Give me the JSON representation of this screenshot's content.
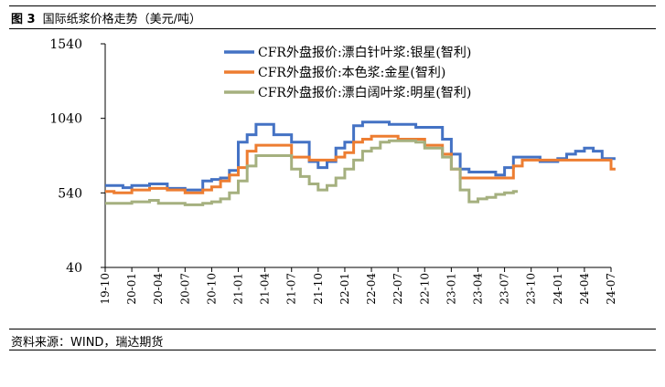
{
  "figure": {
    "number": "图 3",
    "title": "国际纸浆价格走势（美元/吨）"
  },
  "source": "资料来源：WIND，瑞达期货",
  "colors": {
    "silver_star": "#4472C4",
    "gold_star": "#ED7D31",
    "bright_star": "#A5B07F"
  },
  "chart_data": {
    "type": "line",
    "title": "",
    "xlabel": "",
    "ylabel": "",
    "ylim": [
      40,
      1540
    ],
    "yticks": [
      "1540",
      "1040",
      "540",
      "40"
    ],
    "grid": false,
    "legend_position": "top-right",
    "x_tick_labels": [
      "19-10",
      "20-01",
      "20-04",
      "20-07",
      "20-10",
      "21-01",
      "21-04",
      "21-07",
      "21-10",
      "22-01",
      "22-04",
      "22-07",
      "22-10",
      "23-01",
      "23-04",
      "23-07",
      "23-10",
      "24-01",
      "24-04",
      "24-07"
    ],
    "series": [
      {
        "name": "CFR外盘报价:漂白针叶浆:银星(智利)",
        "color_key": "silver_star",
        "points": [
          [
            "2019-10",
            590
          ],
          [
            "2019-11",
            590
          ],
          [
            "2019-12",
            575
          ],
          [
            "2020-01",
            590
          ],
          [
            "2020-02",
            590
          ],
          [
            "2020-03",
            600
          ],
          [
            "2020-04",
            600
          ],
          [
            "2020-05",
            570
          ],
          [
            "2020-06",
            570
          ],
          [
            "2020-07",
            560
          ],
          [
            "2020-08",
            560
          ],
          [
            "2020-09",
            620
          ],
          [
            "2020-10",
            630
          ],
          [
            "2020-11",
            640
          ],
          [
            "2020-12",
            690
          ],
          [
            "2021-01",
            880
          ],
          [
            "2021-02",
            930
          ],
          [
            "2021-03",
            1000
          ],
          [
            "2021-04",
            1000
          ],
          [
            "2021-05",
            930
          ],
          [
            "2021-06",
            930
          ],
          [
            "2021-07",
            880
          ],
          [
            "2021-08",
            880
          ],
          [
            "2021-09",
            750
          ],
          [
            "2021-10",
            710
          ],
          [
            "2021-11",
            750
          ],
          [
            "2021-12",
            840
          ],
          [
            "2022-01",
            880
          ],
          [
            "2022-02",
            990
          ],
          [
            "2022-03",
            1015
          ],
          [
            "2022-04",
            1015
          ],
          [
            "2022-05",
            1015
          ],
          [
            "2022-06",
            1000
          ],
          [
            "2022-07",
            1000
          ],
          [
            "2022-08",
            1000
          ],
          [
            "2022-09",
            980
          ],
          [
            "2022-10",
            980
          ],
          [
            "2022-11",
            980
          ],
          [
            "2022-12",
            900
          ],
          [
            "2023-01",
            800
          ],
          [
            "2023-02",
            700
          ],
          [
            "2023-03",
            680
          ],
          [
            "2023-04",
            680
          ],
          [
            "2023-05",
            680
          ],
          [
            "2023-06",
            660
          ],
          [
            "2023-07",
            710
          ],
          [
            "2023-08",
            780
          ],
          [
            "2023-09",
            780
          ],
          [
            "2023-10",
            780
          ],
          [
            "2023-11",
            750
          ],
          [
            "2023-12",
            750
          ],
          [
            "2024-01",
            770
          ],
          [
            "2024-02",
            800
          ],
          [
            "2024-03",
            820
          ],
          [
            "2024-04",
            840
          ],
          [
            "2024-05",
            820
          ],
          [
            "2024-06",
            770
          ],
          [
            "2024-07",
            770
          ]
        ]
      },
      {
        "name": "CFR外盘报价:本色浆:金星(智利)",
        "color_key": "gold_star",
        "points": [
          [
            "2019-10",
            550
          ],
          [
            "2019-11",
            540
          ],
          [
            "2019-12",
            540
          ],
          [
            "2020-01",
            560
          ],
          [
            "2020-02",
            560
          ],
          [
            "2020-03",
            570
          ],
          [
            "2020-04",
            570
          ],
          [
            "2020-05",
            560
          ],
          [
            "2020-06",
            560
          ],
          [
            "2020-07",
            540
          ],
          [
            "2020-08",
            540
          ],
          [
            "2020-09",
            560
          ],
          [
            "2020-10",
            580
          ],
          [
            "2020-11",
            620
          ],
          [
            "2020-12",
            660
          ],
          [
            "2021-01",
            710
          ],
          [
            "2021-02",
            820
          ],
          [
            "2021-03",
            860
          ],
          [
            "2021-04",
            860
          ],
          [
            "2021-05",
            860
          ],
          [
            "2021-06",
            860
          ],
          [
            "2021-07",
            780
          ],
          [
            "2021-08",
            780
          ],
          [
            "2021-09",
            760
          ],
          [
            "2021-10",
            760
          ],
          [
            "2021-11",
            760
          ],
          [
            "2021-12",
            780
          ],
          [
            "2022-01",
            810
          ],
          [
            "2022-02",
            880
          ],
          [
            "2022-03",
            900
          ],
          [
            "2022-04",
            920
          ],
          [
            "2022-05",
            920
          ],
          [
            "2022-06",
            920
          ],
          [
            "2022-07",
            900
          ],
          [
            "2022-08",
            900
          ],
          [
            "2022-09",
            900
          ],
          [
            "2022-10",
            860
          ],
          [
            "2022-11",
            860
          ],
          [
            "2022-12",
            800
          ],
          [
            "2023-01",
            700
          ],
          [
            "2023-02",
            640
          ],
          [
            "2023-03",
            640
          ],
          [
            "2023-04",
            640
          ],
          [
            "2023-05",
            640
          ],
          [
            "2023-06",
            640
          ],
          [
            "2023-07",
            640
          ],
          [
            "2023-08",
            720
          ],
          [
            "2023-09",
            760
          ],
          [
            "2023-10",
            760
          ],
          [
            "2023-11",
            760
          ],
          [
            "2023-12",
            760
          ],
          [
            "2024-01",
            760
          ],
          [
            "2024-02",
            760
          ],
          [
            "2024-03",
            760
          ],
          [
            "2024-04",
            760
          ],
          [
            "2024-05",
            760
          ],
          [
            "2024-06",
            760
          ],
          [
            "2024-07",
            700
          ]
        ]
      },
      {
        "name": "CFR外盘报价:漂白阔叶浆:明星(智利)",
        "color_key": "bright_star",
        "points": [
          [
            "2019-10",
            470
          ],
          [
            "2019-11",
            470
          ],
          [
            "2019-12",
            470
          ],
          [
            "2020-01",
            480
          ],
          [
            "2020-02",
            480
          ],
          [
            "2020-03",
            490
          ],
          [
            "2020-04",
            470
          ],
          [
            "2020-05",
            470
          ],
          [
            "2020-06",
            470
          ],
          [
            "2020-07",
            460
          ],
          [
            "2020-08",
            460
          ],
          [
            "2020-09",
            470
          ],
          [
            "2020-10",
            480
          ],
          [
            "2020-11",
            500
          ],
          [
            "2020-12",
            540
          ],
          [
            "2021-01",
            620
          ],
          [
            "2021-02",
            720
          ],
          [
            "2021-03",
            790
          ],
          [
            "2021-04",
            790
          ],
          [
            "2021-05",
            790
          ],
          [
            "2021-06",
            790
          ],
          [
            "2021-07",
            700
          ],
          [
            "2021-08",
            650
          ],
          [
            "2021-09",
            600
          ],
          [
            "2021-10",
            560
          ],
          [
            "2021-11",
            590
          ],
          [
            "2021-12",
            640
          ],
          [
            "2022-01",
            700
          ],
          [
            "2022-02",
            760
          ],
          [
            "2022-03",
            820
          ],
          [
            "2022-04",
            840
          ],
          [
            "2022-05",
            880
          ],
          [
            "2022-06",
            890
          ],
          [
            "2022-07",
            890
          ],
          [
            "2022-08",
            890
          ],
          [
            "2022-09",
            880
          ],
          [
            "2022-10",
            840
          ],
          [
            "2022-11",
            840
          ],
          [
            "2022-12",
            780
          ],
          [
            "2023-01",
            700
          ],
          [
            "2023-02",
            560
          ],
          [
            "2023-03",
            480
          ],
          [
            "2023-04",
            500
          ],
          [
            "2023-05",
            510
          ],
          [
            "2023-06",
            530
          ],
          [
            "2023-07",
            540
          ],
          [
            "2023-08",
            550
          ]
        ]
      }
    ]
  }
}
